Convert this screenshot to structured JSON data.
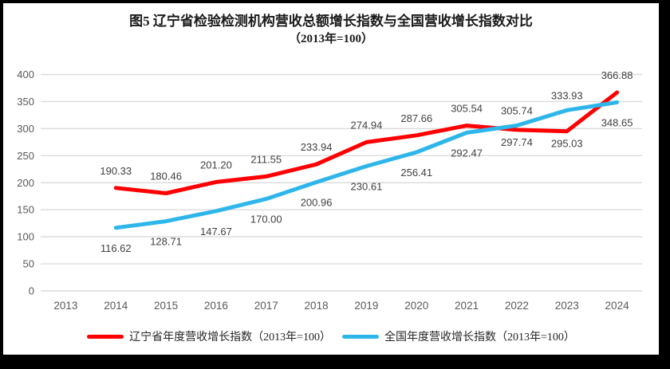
{
  "title": {
    "line1": "图5  辽宁省检验检测机构营收总额增长指数与全国营收增长指数对比",
    "line2": "（2013年=100）"
  },
  "chart_data": {
    "type": "line",
    "categories": [
      "2013",
      "2014",
      "2015",
      "2016",
      "2017",
      "2018",
      "2019",
      "2020",
      "2021",
      "2022",
      "2023",
      "2024"
    ],
    "ylim": [
      0,
      400
    ],
    "ytick_step": 50,
    "yticks": [
      0,
      50,
      100,
      150,
      200,
      250,
      300,
      350,
      400
    ],
    "grid": true,
    "legend_position": "bottom",
    "series": [
      {
        "name": "辽宁省年度营收增长指数（2013年=100）",
        "color": "#FF0000",
        "start_category_index": 1,
        "values": [
          190.33,
          180.46,
          201.2,
          211.55,
          233.94,
          274.94,
          287.66,
          305.54,
          297.74,
          295.03,
          366.88
        ],
        "labels": [
          "190.33",
          "180.46",
          "201.20",
          "211.55",
          "233.94",
          "274.94",
          "287.66",
          "305.54",
          "297.74",
          "295.03",
          "366.88"
        ],
        "label_sides": [
          "above",
          "above",
          "above",
          "above",
          "above",
          "above",
          "above",
          "above",
          "below",
          "below",
          "above"
        ],
        "label_offset_above": -17,
        "label_offset_below": 20
      },
      {
        "name": "全国年度营收增长指数（2013年=100）",
        "color": "#2EB6EA",
        "start_category_index": 1,
        "values": [
          116.62,
          128.71,
          147.67,
          170.0,
          200.96,
          230.61,
          256.41,
          292.47,
          305.74,
          333.93,
          348.65
        ],
        "labels": [
          "116.62",
          "128.71",
          "147.67",
          "170.00",
          "200.96",
          "230.61",
          "256.41",
          "292.47",
          "305.74",
          "333.93",
          "348.65"
        ],
        "label_sides": [
          "below",
          "below",
          "below",
          "below",
          "below",
          "below",
          "below",
          "below",
          "above",
          "above",
          "below"
        ],
        "label_offset_above": -14,
        "label_offset_below": 30
      }
    ]
  },
  "legend": {
    "items": [
      {
        "label": "辽宁省年度营收增长指数（2013年=100）",
        "color": "#FF0000"
      },
      {
        "label": "全国年度营收增长指数（2013年=100）",
        "color": "#2EB6EA"
      }
    ]
  },
  "colors": {
    "background": "#FFFFFF",
    "border": "#000000",
    "grid": "#DCDCDC",
    "tick_label": "#595959",
    "data_label": "#404040",
    "series_liaoning": "#FF0000",
    "series_national": "#2EB6EA"
  }
}
